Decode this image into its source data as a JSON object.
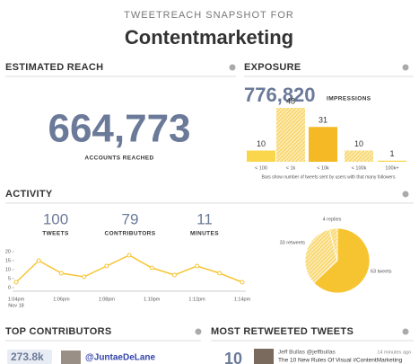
{
  "header": {
    "subtitle": "TWEETREACH SNAPSHOT FOR",
    "title": "Contentmarketing"
  },
  "estimated_reach": {
    "heading": "ESTIMATED REACH",
    "value": "664,773",
    "label": "ACCOUNTS REACHED"
  },
  "exposure": {
    "heading": "EXPOSURE",
    "impressions": "776,820",
    "impressions_label": "IMPRESSIONS",
    "chart": {
      "type": "bar",
      "categories": [
        "< 100",
        "< 1k",
        "< 10k",
        "< 100k",
        "100k+"
      ],
      "values": [
        10,
        48,
        31,
        10,
        1
      ],
      "colors": [
        "#f9d64c",
        "#f7c431",
        "#f5b925",
        "#f7c431",
        "#f9d64c"
      ],
      "hatched": [
        false,
        true,
        false,
        true,
        false
      ],
      "caption": "Bars show number of tweets sent by users with that many followers"
    }
  },
  "activity": {
    "heading": "ACTIVITY",
    "stats": [
      {
        "value": 100,
        "label": "TWEETS"
      },
      {
        "value": 79,
        "label": "CONTRIBUTORS"
      },
      {
        "value": 11,
        "label": "MINUTES"
      }
    ],
    "chart": {
      "type": "line",
      "values": [
        3,
        15,
        8,
        6,
        12,
        18,
        11,
        7,
        12,
        8,
        3
      ],
      "color": "#f7c431",
      "ylim": [
        0,
        20
      ],
      "yticks": [
        0,
        5,
        10,
        15,
        20
      ],
      "xtick_labels": [
        "1:04pm",
        "1:06pm",
        "1:08pm",
        "1:10pm",
        "1:12pm",
        "1:14pm"
      ],
      "date": "Nov 18"
    },
    "pie": {
      "type": "pie",
      "values": [
        63,
        33,
        4
      ],
      "value_labels": [
        "63 tweets",
        "33 retweets",
        "4 replies"
      ],
      "colors": [
        "#f7c431",
        "#f3d778",
        "#f3d778"
      ],
      "hatched": [
        false,
        true,
        true
      ]
    }
  },
  "top_contributors": {
    "heading": "TOP CONTRIBUTORS",
    "count": "273.8k",
    "user": "@JuntaeDeLane"
  },
  "most_retweeted": {
    "heading": "MOST RETWEETED TWEETS",
    "count": "10",
    "author": "Jeff Bullas @jeffbullas",
    "time": "14 minutes ago",
    "text": "The 10 New Rules Of Visual #ContentMarketing"
  }
}
